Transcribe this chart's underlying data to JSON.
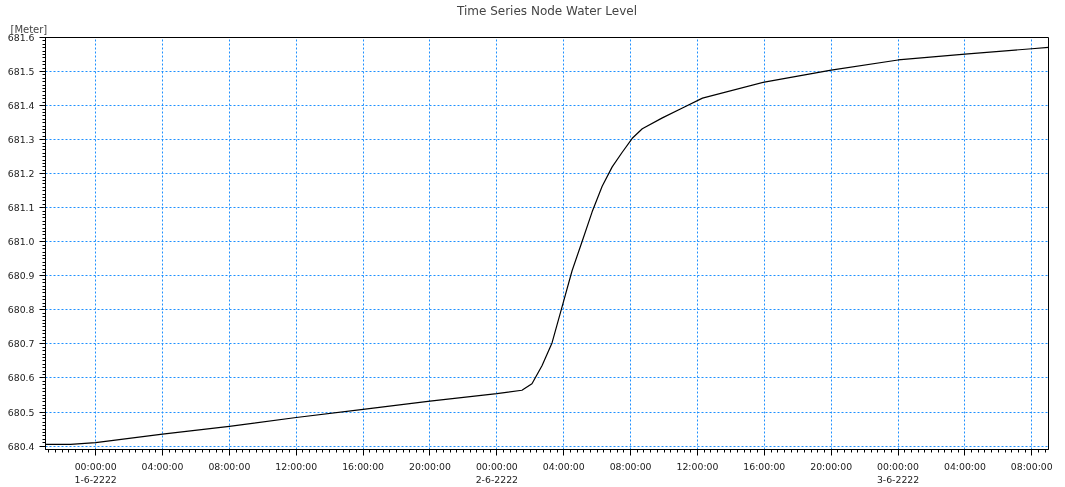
{
  "chart_data": {
    "type": "line",
    "title": "Time Series Node Water Level",
    "ylabel": "[Meter]",
    "x": [
      "2222-05-31T21:00",
      "2222-05-31T22:30",
      "2222-06-01T00:00",
      "2222-06-01T04:00",
      "2222-06-01T08:00",
      "2222-06-01T12:00",
      "2222-06-01T16:00",
      "2222-06-01T20:00",
      "2222-06-02T00:00",
      "2222-06-02T01:30",
      "2222-06-02T02:06",
      "2222-06-02T02:42",
      "2222-06-02T03:18",
      "2222-06-02T03:54",
      "2222-06-02T04:30",
      "2222-06-02T05:06",
      "2222-06-02T05:42",
      "2222-06-02T06:18",
      "2222-06-02T06:54",
      "2222-06-02T07:30",
      "2222-06-02T08:06",
      "2222-06-02T08:42",
      "2222-06-02T09:54",
      "2222-06-02T11:06",
      "2222-06-02T12:18",
      "2222-06-02T16:00",
      "2222-06-02T20:00",
      "2222-06-03T00:00",
      "2222-06-03T04:00",
      "2222-06-03T08:00",
      "2222-06-03T09:00"
    ],
    "series": [
      {
        "color": "#000000",
        "values": [
          680.405,
          680.405,
          680.41,
          680.435,
          680.458,
          680.484,
          680.508,
          680.532,
          680.554,
          680.564,
          680.583,
          680.636,
          680.703,
          680.809,
          680.915,
          681.001,
          681.088,
          681.163,
          681.22,
          681.263,
          681.304,
          681.332,
          681.364,
          681.393,
          681.422,
          681.469,
          681.504,
          681.534,
          681.551,
          681.567,
          681.571
        ]
      }
    ],
    "xlim": [
      "2222-05-31T21:00",
      "2222-06-03T09:00"
    ],
    "xticks": [
      {
        "value": "2222-06-01T00:00",
        "label": "00:00:00\n1-6-2222"
      },
      {
        "value": "2222-06-01T04:00",
        "label": "04:00:00"
      },
      {
        "value": "2222-06-01T08:00",
        "label": "08:00:00"
      },
      {
        "value": "2222-06-01T12:00",
        "label": "12:00:00"
      },
      {
        "value": "2222-06-01T16:00",
        "label": "16:00:00"
      },
      {
        "value": "2222-06-01T20:00",
        "label": "20:00:00"
      },
      {
        "value": "2222-06-02T00:00",
        "label": "00:00:00\n2-6-2222"
      },
      {
        "value": "2222-06-02T04:00",
        "label": "04:00:00"
      },
      {
        "value": "2222-06-02T08:00",
        "label": "08:00:00"
      },
      {
        "value": "2222-06-02T12:00",
        "label": "12:00:00"
      },
      {
        "value": "2222-06-02T16:00",
        "label": "16:00:00"
      },
      {
        "value": "2222-06-02T20:00",
        "label": "20:00:00"
      },
      {
        "value": "2222-06-03T00:00",
        "label": "00:00:00\n3-6-2222"
      },
      {
        "value": "2222-06-03T04:00",
        "label": "04:00:00"
      },
      {
        "value": "2222-06-03T08:00",
        "label": "08:00:00"
      }
    ],
    "ylim": [
      680.39,
      681.6
    ],
    "yticks": [
      680.4,
      680.5,
      680.6,
      680.7,
      680.8,
      680.9,
      {
        "value": 681.0,
        "label": "681.0"
      },
      681.1,
      681.2,
      681.3,
      681.4,
      681.5,
      681.6
    ],
    "grid": true,
    "marker": "none",
    "line_style": "solid"
  }
}
